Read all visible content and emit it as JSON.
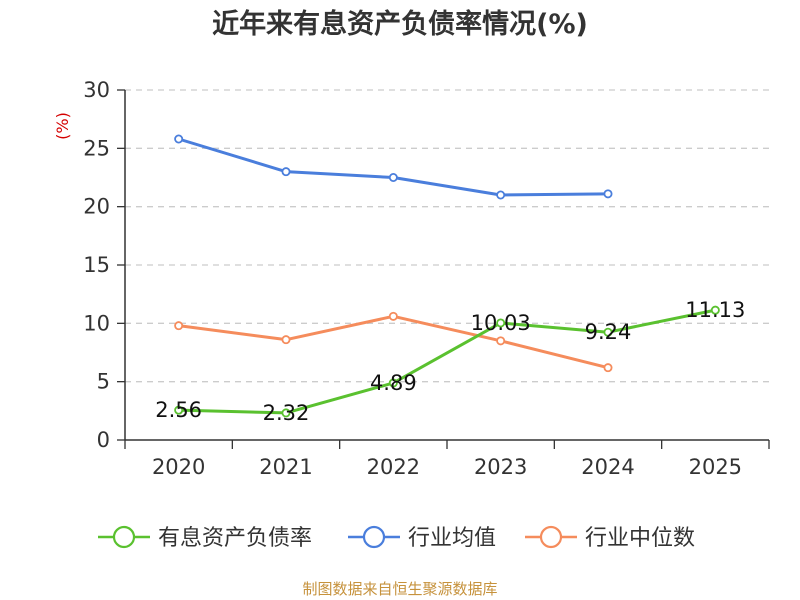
{
  "title": "近年来有息资产负债率情况(%)",
  "source": "制图数据来自恒生聚源数据库",
  "chart_data": {
    "type": "line",
    "title": "近年来有息资产负债率情况(%)",
    "ylabel": "(%)",
    "xlabel": "",
    "categories": [
      "2020",
      "2021",
      "2022",
      "2023",
      "2024",
      "2025"
    ],
    "ylim": [
      0,
      30
    ],
    "yticks": [
      "0",
      "5",
      "10",
      "15",
      "20",
      "25",
      "30"
    ],
    "grid": true,
    "legend_position": "bottom",
    "series": [
      {
        "name": "有息资产负债率",
        "color": "#5ac12f",
        "values": [
          2.56,
          2.32,
          4.89,
          10.03,
          9.24,
          11.13
        ],
        "labels": [
          "2.56",
          "2.32",
          "4.89",
          "10.03",
          "9.24",
          "11.13"
        ]
      },
      {
        "name": "行业均值",
        "color": "#4a7edc",
        "values": [
          25.8,
          23.0,
          22.5,
          21.0,
          21.1,
          null
        ]
      },
      {
        "name": "行业中位数",
        "color": "#f58c5c",
        "values": [
          9.8,
          8.6,
          10.6,
          8.5,
          6.2,
          null
        ]
      }
    ]
  }
}
